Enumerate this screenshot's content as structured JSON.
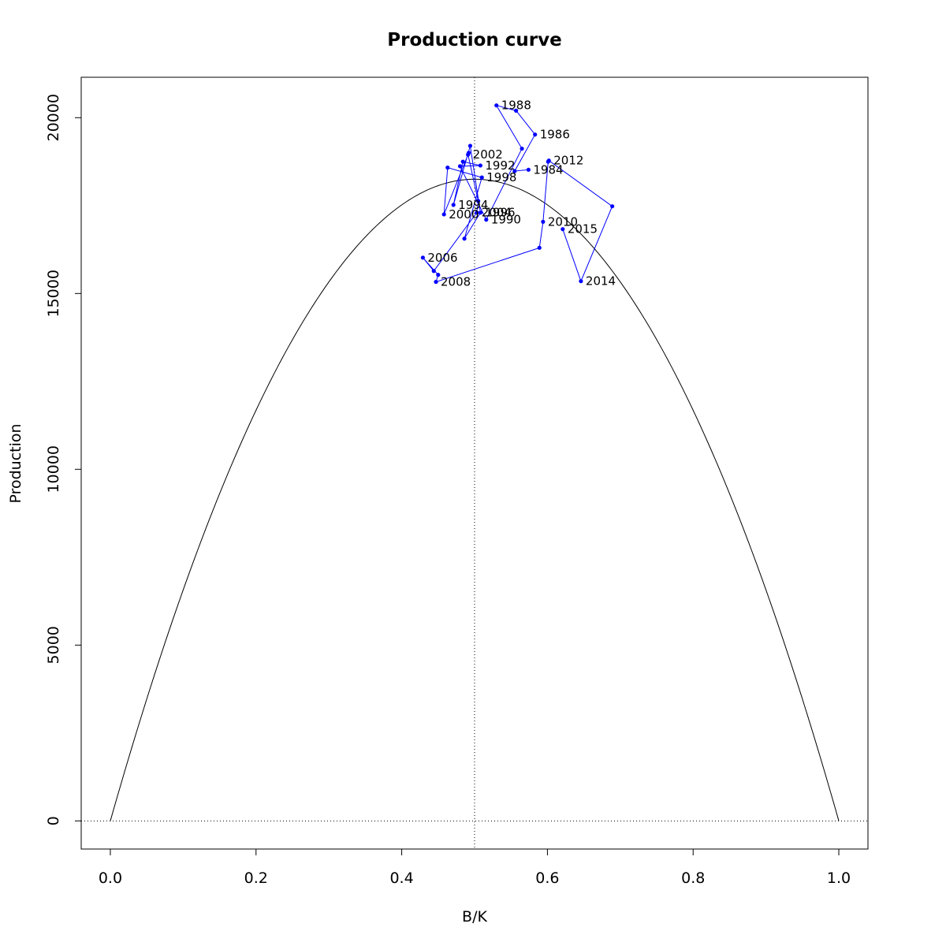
{
  "chart_data": {
    "type": "line",
    "title": "Production curve",
    "xlabel": "B/K",
    "ylabel": "Production",
    "xlim": [
      -0.04,
      1.04
    ],
    "ylim": [
      -800,
      21150
    ],
    "x_ticks": [
      {
        "value": 0.0,
        "label": "0.0"
      },
      {
        "value": 0.2,
        "label": "0.2"
      },
      {
        "value": 0.4,
        "label": "0.4"
      },
      {
        "value": 0.6,
        "label": "0.6"
      },
      {
        "value": 0.8,
        "label": "0.8"
      },
      {
        "value": 1.0,
        "label": "1.0"
      }
    ],
    "y_ticks": [
      {
        "value": 0,
        "label": "0"
      },
      {
        "value": 5000,
        "label": "5000"
      },
      {
        "value": 10000,
        "label": "10000"
      },
      {
        "value": 15000,
        "label": "15000"
      },
      {
        "value": 20000,
        "label": "20000"
      }
    ],
    "grid": false,
    "reference_lines": {
      "vertical_x": 0.5,
      "horizontal_y": 0,
      "style": "dotted"
    },
    "curve": {
      "shape": "parabola",
      "x_range": [
        0,
        1
      ],
      "max_production": 18250,
      "peak_at": 0.5,
      "color": "#000000"
    },
    "series": [
      {
        "color": "#0000ff",
        "points": [
          {
            "x": 0.574,
            "y": 18520,
            "label": "1984"
          },
          {
            "x": 0.555,
            "y": 18480,
            "label": ""
          },
          {
            "x": 0.583,
            "y": 19520,
            "label": "1986"
          },
          {
            "x": 0.557,
            "y": 20200,
            "label": ""
          },
          {
            "x": 0.53,
            "y": 20350,
            "label": "1988"
          },
          {
            "x": 0.565,
            "y": 19120,
            "label": ""
          },
          {
            "x": 0.516,
            "y": 17100,
            "label": "1990"
          },
          {
            "x": 0.48,
            "y": 18620,
            "label": ""
          },
          {
            "x": 0.508,
            "y": 18640,
            "label": "1992"
          },
          {
            "x": 0.484,
            "y": 18750,
            "label": ""
          },
          {
            "x": 0.471,
            "y": 17520,
            "label": "1994"
          },
          {
            "x": 0.494,
            "y": 19200,
            "label": ""
          },
          {
            "x": 0.508,
            "y": 17300,
            "label": "1996"
          },
          {
            "x": 0.486,
            "y": 16560,
            "label": ""
          },
          {
            "x": 0.51,
            "y": 18300,
            "label": "1998"
          },
          {
            "x": 0.463,
            "y": 18580,
            "label": ""
          },
          {
            "x": 0.458,
            "y": 17250,
            "label": "2000"
          },
          {
            "x": 0.492,
            "y": 19000,
            "label": ""
          },
          {
            "x": 0.491,
            "y": 18950,
            "label": "2002"
          },
          {
            "x": 0.505,
            "y": 17630,
            "label": ""
          },
          {
            "x": 0.503,
            "y": 17300,
            "label": "2004"
          },
          {
            "x": 0.444,
            "y": 15640,
            "label": ""
          },
          {
            "x": 0.429,
            "y": 16020,
            "label": "2006"
          },
          {
            "x": 0.45,
            "y": 15530,
            "label": ""
          },
          {
            "x": 0.447,
            "y": 15330,
            "label": "2008"
          },
          {
            "x": 0.589,
            "y": 16300,
            "label": ""
          },
          {
            "x": 0.594,
            "y": 17040,
            "label": "2010"
          },
          {
            "x": 0.601,
            "y": 18750,
            "label": ""
          },
          {
            "x": 0.602,
            "y": 18780,
            "label": "2012"
          },
          {
            "x": 0.689,
            "y": 17480,
            "label": ""
          },
          {
            "x": 0.646,
            "y": 15350,
            "label": "2014"
          },
          {
            "x": 0.621,
            "y": 16830,
            "label": "2015"
          }
        ]
      }
    ]
  }
}
